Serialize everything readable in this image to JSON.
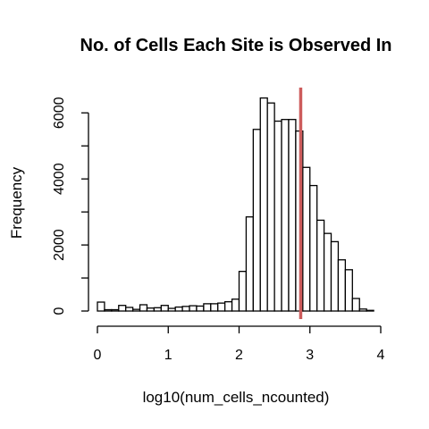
{
  "chart_data": {
    "type": "bar",
    "title": "No. of Cells Each Site is Observed In",
    "xlabel": "log10(num_cells_ncounted)",
    "ylabel": "Frequency",
    "xlim": [
      0,
      4
    ],
    "ylim": [
      0,
      6000
    ],
    "x_ticks": [
      "0",
      "1",
      "2",
      "3",
      "4"
    ],
    "y_ticks": [
      "0",
      "2000",
      "4000",
      "6000"
    ],
    "bin_width": 0.1,
    "bin_starts": [
      0.0,
      0.1,
      0.2,
      0.3,
      0.4,
      0.5,
      0.6,
      0.7,
      0.8,
      0.9,
      1.0,
      1.1,
      1.2,
      1.3,
      1.4,
      1.5,
      1.6,
      1.7,
      1.8,
      1.9,
      2.0,
      2.1,
      2.2,
      2.3,
      2.4,
      2.5,
      2.6,
      2.7,
      2.8,
      2.9,
      3.0,
      3.1,
      3.2,
      3.3,
      3.4,
      3.5,
      3.6,
      3.7,
      3.8
    ],
    "values": [
      270,
      40,
      40,
      170,
      110,
      50,
      190,
      90,
      100,
      170,
      80,
      120,
      140,
      160,
      150,
      220,
      220,
      240,
      280,
      360,
      1200,
      2850,
      5500,
      6450,
      6300,
      5750,
      5800,
      5800,
      5450,
      4350,
      3800,
      2750,
      2350,
      2100,
      1550,
      1250,
      380,
      60,
      20
    ],
    "reference_line": {
      "x": 2.87,
      "color": "#cd5c5c"
    },
    "bar_fill": "#ffffff",
    "bar_stroke": "#000000",
    "grid": false
  }
}
